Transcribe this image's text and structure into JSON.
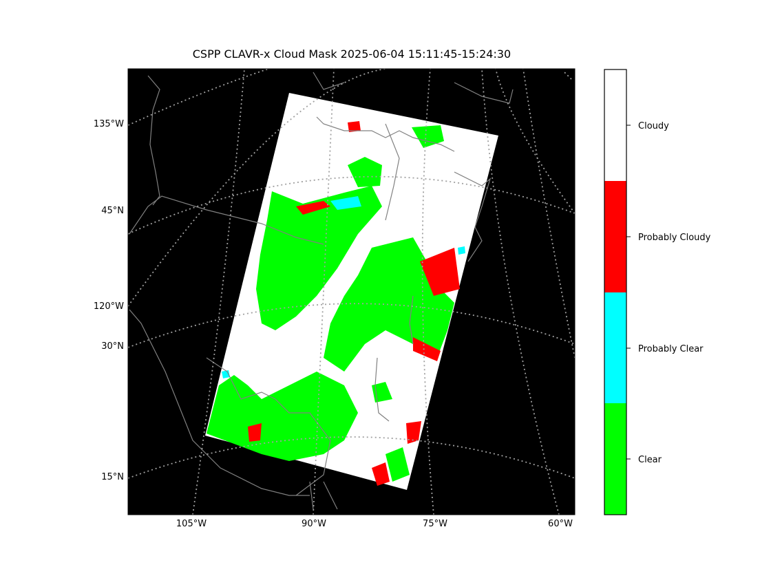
{
  "title": "CSPP CLAVR-x Cloud Mask 2025-06-04 15:11:45-15:24:30",
  "map": {
    "background_color": "#000000",
    "graticule_color": "#a0a0a0",
    "coastline_color": "#808080",
    "left_labels": [
      "135°W",
      "45°N",
      "120°W",
      "30°N",
      "15°N"
    ],
    "bottom_labels": [
      "105°W",
      "90°W",
      "75°W",
      "60°W"
    ]
  },
  "colorbar": {
    "categories": [
      {
        "label": "Cloudy",
        "color": "#ffffff"
      },
      {
        "label": "Probably Cloudy",
        "color": "#ff0000"
      },
      {
        "label": "Probably Clear",
        "color": "#00ffff"
      },
      {
        "label": "Clear",
        "color": "#00ff00"
      }
    ]
  }
}
